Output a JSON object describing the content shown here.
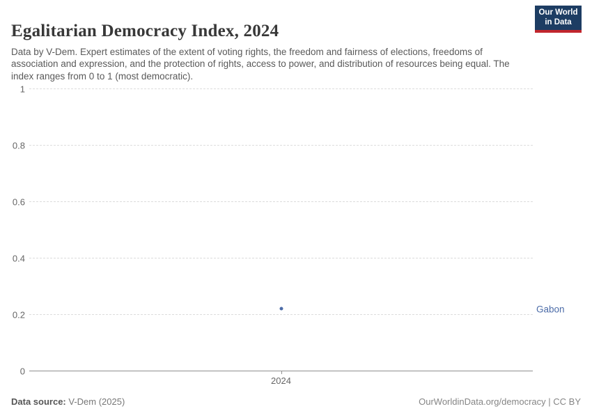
{
  "header": {
    "title": "Egalitarian Democracy Index, 2024",
    "subtitle": "Data by V-Dem. Expert estimates of the extent of voting rights, the freedom and fairness of elections, freedoms of association and expression, and the protection of rights, access to power, and distribution of resources being equal. The index ranges from 0 to 1 (most democratic).",
    "logo": {
      "line1": "Our World",
      "line2": "in Data",
      "bg_color": "#1d3d63",
      "bar_color": "#c1272d"
    }
  },
  "chart_data": {
    "type": "scatter",
    "title": "Egalitarian Democracy Index, 2024",
    "x": [
      2024
    ],
    "x_tick_labels": [
      "2024"
    ],
    "series": [
      {
        "name": "Gabon",
        "values": [
          0.22
        ],
        "color": "#4c6ca8"
      }
    ],
    "ylim": [
      0,
      1
    ],
    "yticks": [
      0,
      0.2,
      0.4,
      0.6,
      0.8,
      1
    ],
    "ytick_labels": [
      "0",
      "0.2",
      "0.4",
      "0.6",
      "0.8",
      "1"
    ],
    "grid": "horizontal-dashed",
    "legend_position": "right-of-point"
  },
  "footer": {
    "source_label": "Data source:",
    "source_value": " V-Dem (2025)",
    "link_text": "OurWorldinData.org/democracy | CC BY"
  }
}
